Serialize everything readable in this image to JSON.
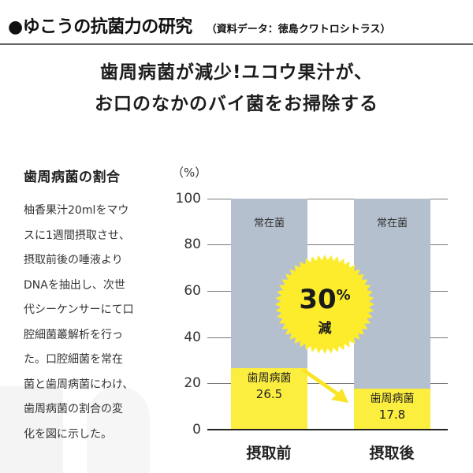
{
  "header": {
    "title": "●ゆこうの抗菌力の研究",
    "source": "（資料データ：徳島クワトロシトラス）"
  },
  "headline": {
    "line1": "歯周病菌が減少!ユコウ果汁が、",
    "line2": "お口のなかのバイ菌をお掃除する"
  },
  "sidebar": {
    "title": "歯周病菌の割合",
    "body_lines": [
      "柚香果汁20mlをマウ",
      "スに1週間摂取させ、",
      "摂取前後の唾液より",
      "DNAを抽出し、次世",
      "代シーケンサーにて口",
      "腔細菌叢解析を行っ",
      "た。口腔細菌を常在",
      "菌と歯周病菌にわけ、",
      "歯周病菌の割合の変",
      "化を図に示した。"
    ]
  },
  "chart": {
    "unit": "（%）",
    "yticks": [
      "100",
      "80",
      "60",
      "40",
      "20",
      "0"
    ],
    "bars": [
      {
        "category": "摂取前",
        "top_label": "常在菌",
        "bottom_label": "歯周病菌",
        "bottom_value": "26.5"
      },
      {
        "category": "摂取後",
        "top_label": "常在菌",
        "bottom_label": "歯周病菌",
        "bottom_value": "17.8"
      }
    ],
    "badge": {
      "value": "30",
      "pct": "%",
      "suffix": "減"
    },
    "colors": {
      "resident": "#b5c0cf",
      "periodontal": "#fcee3f",
      "badge": "#fdec2c",
      "arrow": "#f9e425"
    }
  },
  "chart_data": {
    "type": "bar",
    "stacked": true,
    "title": "歯周病菌の割合",
    "categories": [
      "摂取前",
      "摂取後"
    ],
    "series": [
      {
        "name": "歯周病菌",
        "values": [
          26.5,
          17.8
        ],
        "color": "#fcee3f"
      },
      {
        "name": "常在菌",
        "values": [
          73.5,
          82.2
        ],
        "color": "#b5c0cf"
      }
    ],
    "xlabel": "",
    "ylabel": "（%）",
    "ylim": [
      0,
      100
    ],
    "yticks": [
      0,
      20,
      40,
      60,
      80,
      100
    ],
    "grid": true,
    "legend": "none (labels inside bars)",
    "annotations": [
      "30%減",
      "arrow from 摂取前 歯周病菌 to 摂取後 歯周病菌"
    ]
  }
}
